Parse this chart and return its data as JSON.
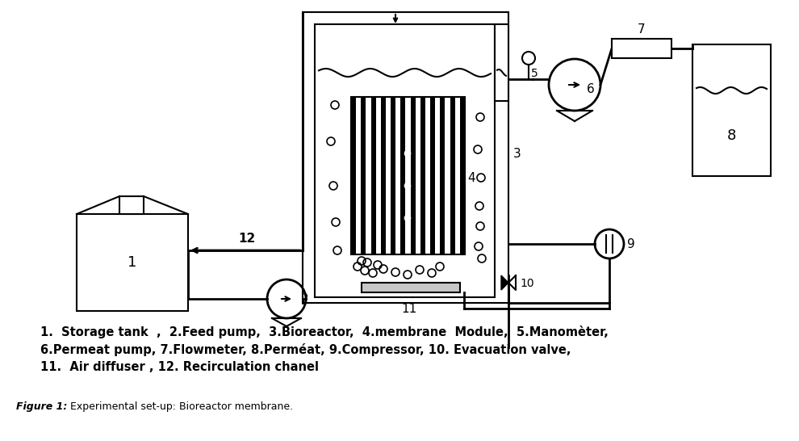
{
  "legend_line1": "1.  Storage tank  ,  2.Feed pump,  3.Bioreactor,  4.membrane  Module,  5.Manomèter,",
  "legend_line2": "6.Permeat pump, 7.Flowmeter, 8.Perméat, 9.Compressor, 10. Evacuation valve,",
  "legend_line3": "11.  Air diffuser , 12. Recirculation chanel",
  "caption_bold": "Figure 1:",
  "caption_normal": " Experimental set-up: Bioreactor membrane.",
  "bg_color": "#ffffff",
  "line_color": "#000000",
  "lw": 1.5
}
